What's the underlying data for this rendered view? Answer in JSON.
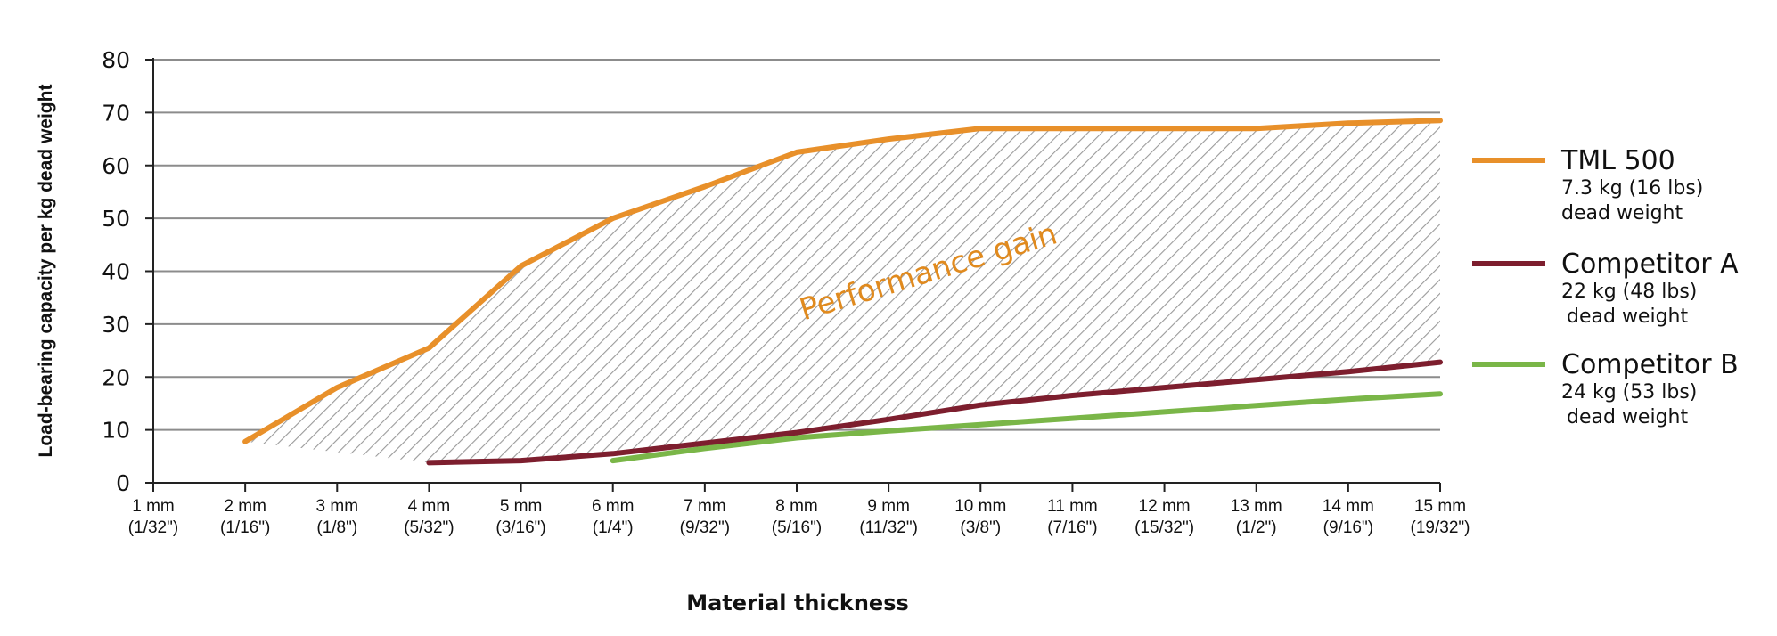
{
  "chart_data": {
    "type": "line",
    "xlabel": "Material thickness",
    "ylabel": "Load-bearing capacity per kg dead weight",
    "ylim": [
      0,
      80
    ],
    "yticks": [
      "0",
      "10",
      "20",
      "30",
      "40",
      "50",
      "60",
      "70",
      "80"
    ],
    "grid": "horizontal",
    "legend_position": "right",
    "categories": [
      {
        "mm": "1 mm",
        "inch": "(1/32\")"
      },
      {
        "mm": "2 mm",
        "inch": "(1/16\")"
      },
      {
        "mm": "3 mm",
        "inch": "(1/8\")"
      },
      {
        "mm": "4 mm",
        "inch": "(5/32\")"
      },
      {
        "mm": "5 mm",
        "inch": "(3/16\")"
      },
      {
        "mm": "6 mm",
        "inch": "(1/4\")"
      },
      {
        "mm": "7 mm",
        "inch": "(9/32\")"
      },
      {
        "mm": "8 mm",
        "inch": "(5/16\")"
      },
      {
        "mm": "9 mm",
        "inch": "(11/32\")"
      },
      {
        "mm": "10 mm",
        "inch": "(3/8\")"
      },
      {
        "mm": "11 mm",
        "inch": "(7/16\")"
      },
      {
        "mm": "12 mm",
        "inch": "(15/32\")"
      },
      {
        "mm": "13 mm",
        "inch": "(1/2\")"
      },
      {
        "mm": "14 mm",
        "inch": "(9/16\")"
      },
      {
        "mm": "15 mm",
        "inch": "(19/32\")"
      }
    ],
    "series": [
      {
        "name": "TML 500",
        "description": [
          "7.3 kg (16 lbs)",
          "dead weight"
        ],
        "color": "#e8902a",
        "points": [
          [
            2,
            7.8
          ],
          [
            3,
            18
          ],
          [
            4,
            25.5
          ],
          [
            5,
            41
          ],
          [
            6,
            50
          ],
          [
            7,
            56
          ],
          [
            8,
            62.5
          ],
          [
            9,
            65
          ],
          [
            10,
            67
          ],
          [
            11,
            67
          ],
          [
            12,
            67
          ],
          [
            13,
            67
          ],
          [
            14,
            68
          ],
          [
            15,
            68.5
          ]
        ]
      },
      {
        "name": "Competitor A",
        "description": [
          "22 kg (48 lbs)",
          "dead weight"
        ],
        "color": "#7d1e2e",
        "points": [
          [
            4,
            3.8
          ],
          [
            5,
            4.2
          ],
          [
            6,
            5.5
          ],
          [
            7,
            7.5
          ],
          [
            8,
            9.5
          ],
          [
            9,
            12
          ],
          [
            10,
            14.7
          ],
          [
            11,
            16.5
          ],
          [
            12,
            18
          ],
          [
            13,
            19.5
          ],
          [
            14,
            21
          ],
          [
            15,
            22.8
          ]
        ]
      },
      {
        "name": "Competitor B",
        "description": [
          "24 kg (53 lbs)",
          "dead weight"
        ],
        "color": "#7ab648",
        "points": [
          [
            6,
            4.2
          ],
          [
            7,
            6.5
          ],
          [
            8,
            8.5
          ],
          [
            9,
            9.8
          ],
          [
            10,
            11
          ],
          [
            11,
            12.2
          ],
          [
            12,
            13.4
          ],
          [
            13,
            14.6
          ],
          [
            14,
            15.8
          ],
          [
            15,
            16.8
          ]
        ]
      }
    ],
    "shaded_region": {
      "label": "Performance gain",
      "upper_series": "TML 500",
      "lower_boundary": [
        [
          2,
          7.8
        ],
        [
          4,
          3.8
        ],
        [
          5,
          4.2
        ],
        [
          6,
          5.5
        ],
        [
          7,
          7.5
        ],
        [
          8,
          9.5
        ],
        [
          9,
          12
        ],
        [
          10,
          14.7
        ],
        [
          11,
          16.5
        ],
        [
          12,
          18
        ],
        [
          13,
          19.5
        ],
        [
          14,
          21
        ],
        [
          15,
          22.8
        ]
      ],
      "pattern": "diagonal-hatch"
    }
  }
}
